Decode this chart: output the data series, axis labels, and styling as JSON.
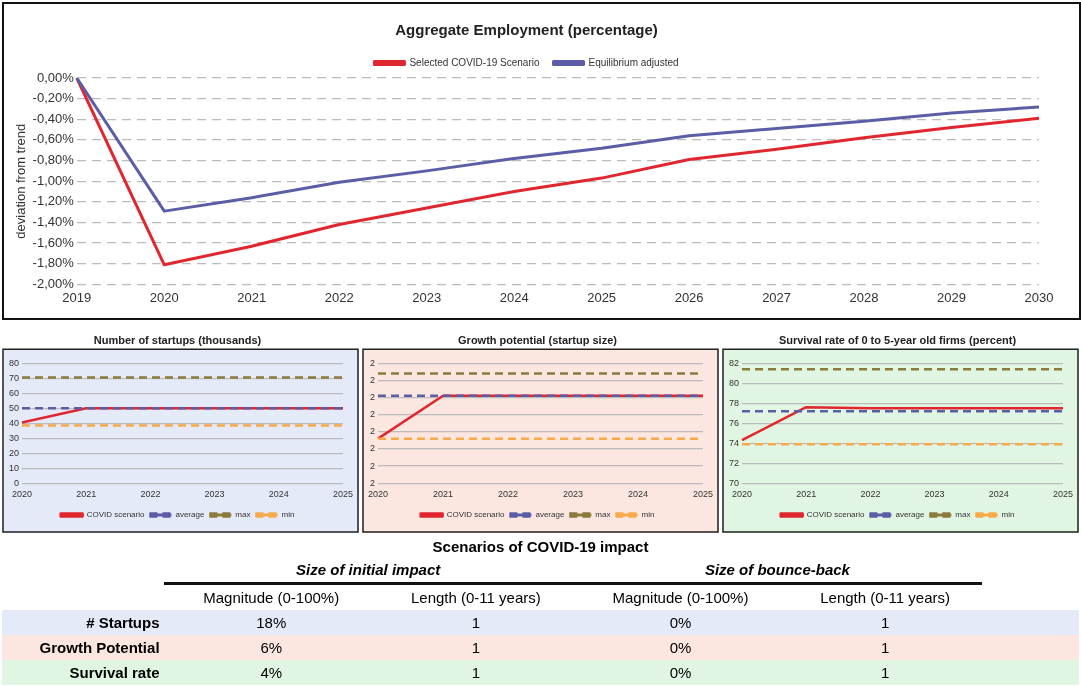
{
  "chart_data": [
    {
      "type": "line",
      "title": "Aggregate Employment (percentage)",
      "ylabel": "deviation from trend",
      "categories": [
        "2019",
        "2020",
        "2021",
        "2022",
        "2023",
        "2024",
        "2025",
        "2026",
        "2027",
        "2028",
        "2029",
        "2030"
      ],
      "series": [
        {
          "name": "Selected COVID-19 Scenario",
          "color": "#e0262e",
          "values": [
            0,
            -1.81,
            -1.63,
            -1.42,
            -1.26,
            -1.1,
            -0.97,
            -0.79,
            -0.69,
            -0.58,
            -0.48,
            -0.39
          ]
        },
        {
          "name": "Equilibrium adjusted",
          "color": "#5b5ea6",
          "values": [
            0,
            -1.29,
            -1.16,
            -1.01,
            -0.9,
            -0.78,
            -0.68,
            -0.56,
            -0.49,
            -0.42,
            -0.34,
            -0.28
          ]
        }
      ],
      "ylim": [
        -2,
        0
      ],
      "yticks": [
        {
          "value": 0,
          "label": "0,00%"
        },
        {
          "value": -0.2,
          "label": "-0,20%"
        },
        {
          "value": -0.4,
          "label": "-0,40%"
        },
        {
          "value": -0.6,
          "label": "-0,60%"
        },
        {
          "value": -0.8,
          "label": "-0,80%"
        },
        {
          "value": -1,
          "label": "-1,00%"
        },
        {
          "value": -1.2,
          "label": "-1,20%"
        },
        {
          "value": -1.4,
          "label": "-1,40%"
        },
        {
          "value": -1.6,
          "label": "-1,60%"
        },
        {
          "value": -1.8,
          "label": "-1,80%"
        },
        {
          "value": -2,
          "label": "-2,00%"
        }
      ],
      "grid": "y",
      "legend": "top",
      "marker": "none"
    },
    {
      "type": "line",
      "title": "Number of startups (thousands)",
      "categories": [
        "2020",
        "2021",
        "2022",
        "2023",
        "2024",
        "2025"
      ],
      "series": [
        {
          "name": "COVID scenario",
          "color": "#e0262e",
          "values": [
            40.5,
            50,
            50,
            50,
            50,
            50
          ]
        },
        {
          "name": "average",
          "color": "#5b5ea6",
          "line_style": "dashed",
          "values": [
            50,
            50,
            50,
            50,
            50,
            50
          ]
        },
        {
          "name": "max",
          "color": "#8c7a3c",
          "line_style": "dashed",
          "values": [
            70.5,
            70.5,
            70.5,
            70.5,
            70.5,
            70.5
          ]
        },
        {
          "name": "min",
          "color": "#f8a94a",
          "line_style": "dashed",
          "values": [
            38.5,
            38.5,
            38.5,
            38.5,
            38.5,
            38.5
          ]
        }
      ],
      "ylim": [
        0,
        80
      ],
      "yticks": [
        0,
        10,
        20,
        30,
        40,
        50,
        60,
        70,
        80
      ],
      "grid": "y",
      "legend": "bottom",
      "marker": "none"
    },
    {
      "type": "line",
      "title": "Growth potential (startup size)",
      "categories": [
        "2020",
        "2021",
        "2022",
        "2023",
        "2024",
        "2025"
      ],
      "series": [
        {
          "name": "COVID scenario",
          "color": "#e0262e",
          "values": [
            1.91,
            2.16,
            2.16,
            2.16,
            2.16,
            2.16
          ]
        },
        {
          "name": "average",
          "color": "#5b5ea6",
          "line_style": "dashed",
          "values": [
            2.16,
            2.16,
            2.16,
            2.16,
            2.16,
            2.16
          ]
        },
        {
          "name": "max",
          "color": "#8c7a3c",
          "line_style": "dashed",
          "values": [
            2.29,
            2.29,
            2.29,
            2.29,
            2.29,
            2.29
          ]
        },
        {
          "name": "min",
          "color": "#f8a94a",
          "line_style": "dashed",
          "values": [
            1.91,
            1.91,
            1.91,
            1.91,
            1.91,
            1.91
          ]
        }
      ],
      "ylim": [
        1.65,
        2.35
      ],
      "yticks": [
        {
          "value": 1.65,
          "label": "2"
        },
        {
          "value": 1.75,
          "label": "2"
        },
        {
          "value": 1.85,
          "label": "2"
        },
        {
          "value": 1.95,
          "label": "2"
        },
        {
          "value": 2.05,
          "label": "2"
        },
        {
          "value": 2.15,
          "label": "2"
        },
        {
          "value": 2.25,
          "label": "2"
        },
        {
          "value": 2.35,
          "label": "2"
        }
      ],
      "grid": "y",
      "legend": "bottom",
      "marker": "none"
    },
    {
      "type": "line",
      "title": "Survival rate of 0 to 5-year old firms (percent)",
      "categories": [
        "2020",
        "2021",
        "2022",
        "2023",
        "2024",
        "2025"
      ],
      "series": [
        {
          "name": "COVID scenario",
          "color": "#e0262e",
          "values": [
            74.3,
            77.6,
            77.5,
            77.5,
            77.5,
            77.5
          ]
        },
        {
          "name": "average",
          "color": "#5b5ea6",
          "line_style": "dashed",
          "values": [
            77.2,
            77.2,
            77.2,
            77.2,
            77.2,
            77.2
          ]
        },
        {
          "name": "max",
          "color": "#8c7a3c",
          "line_style": "dashed",
          "values": [
            81.4,
            81.4,
            81.4,
            81.4,
            81.4,
            81.4
          ]
        },
        {
          "name": "min",
          "color": "#f8a94a",
          "line_style": "dashed",
          "values": [
            73.9,
            73.9,
            73.9,
            73.9,
            73.9,
            73.9
          ]
        }
      ],
      "ylim": [
        70,
        82
      ],
      "yticks": [
        70,
        72,
        74,
        76,
        78,
        80,
        82
      ],
      "grid": "y",
      "legend": "bottom",
      "marker": "none"
    },
    {
      "type": "other",
      "title": "Scenarios of COVID-19 impact",
      "annotations": [
        "Size of initial impact",
        "Size of bounce-back"
      ],
      "categories": [
        "Magnitude (0-100%)",
        "Length (0-11 years)",
        "Magnitude (0-100%)",
        "Length (0-11 years)"
      ],
      "y_categories": [
        "# Startups",
        "Growth Potential",
        "Survival rate"
      ],
      "cell_labels": [
        [
          "18%",
          "1",
          "0%",
          "1"
        ],
        [
          "6%",
          "1",
          "0%",
          "1"
        ],
        [
          "4%",
          "1",
          "0%",
          "1"
        ]
      ]
    }
  ]
}
